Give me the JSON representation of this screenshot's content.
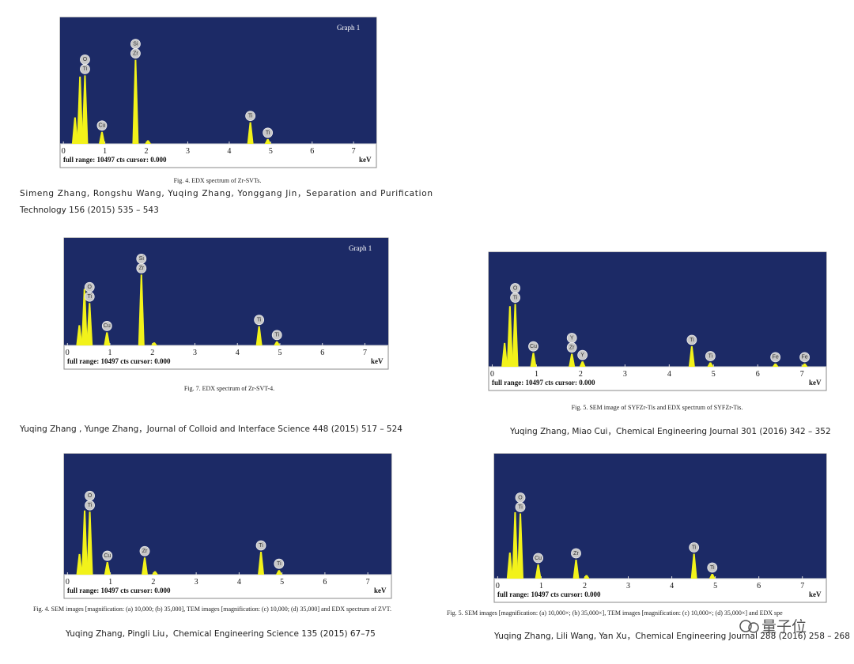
{
  "panels": [
    {
      "graph_label": "Graph 1",
      "xlim": [
        -0.08,
        7.55
      ],
      "ylim": [
        0,
        100
      ],
      "xticks": [
        0,
        1,
        2,
        3,
        4,
        5,
        6,
        7
      ],
      "footer": "full range: 10497 cts  cursor: 0.000",
      "unit": "keV",
      "peaks": [
        {
          "kev": 0.28,
          "height": 22,
          "labels": []
        },
        {
          "kev": 0.4,
          "height": 56,
          "labels": []
        },
        {
          "kev": 0.52,
          "height": 57,
          "labels": [
            "O",
            "Ti"
          ]
        },
        {
          "kev": 0.93,
          "height": 10,
          "labels": [
            "Cu"
          ]
        },
        {
          "kev": 1.74,
          "height": 70,
          "labels": [
            "Si",
            "Zr"
          ]
        },
        {
          "kev": 2.04,
          "height": 3,
          "labels": []
        },
        {
          "kev": 4.51,
          "height": 18,
          "labels": [
            "Ti"
          ]
        },
        {
          "kev": 4.93,
          "height": 4,
          "labels": [
            "Ti"
          ]
        }
      ],
      "caption": "Fig. 4. EDX spectrum of Zr-SVTs.",
      "citation": [
        "Simeng Zhang, Rongshu Wang, Yuqing Zhang, Yonggang Jin，Separation and Purification",
        "Technology 156 (2015) 535 – 543"
      ]
    },
    {
      "graph_label": "Graph 1",
      "xlim": [
        -0.08,
        7.55
      ],
      "ylim": [
        0,
        100
      ],
      "xticks": [
        0,
        1,
        2,
        3,
        4,
        5,
        6,
        7
      ],
      "footer": "full range: 10497 cts  cursor: 0.000",
      "unit": "keV",
      "peaks": [
        {
          "kev": 0.28,
          "height": 20,
          "labels": []
        },
        {
          "kev": 0.4,
          "height": 56,
          "labels": []
        },
        {
          "kev": 0.52,
          "height": 42,
          "labels": [
            "O",
            "Ti"
          ]
        },
        {
          "kev": 0.93,
          "height": 13,
          "labels": [
            "Cu"
          ]
        },
        {
          "kev": 1.74,
          "height": 70,
          "labels": [
            "Si",
            "Zr"
          ]
        },
        {
          "kev": 2.04,
          "height": 3,
          "labels": []
        },
        {
          "kev": 4.51,
          "height": 19,
          "labels": [
            "Ti"
          ]
        },
        {
          "kev": 4.93,
          "height": 4,
          "labels": [
            "Ti"
          ]
        }
      ],
      "caption": "Fig. 7. EDX spectrum of Zr-SVT-4.",
      "citation": [
        "Yuqing Zhang , Yunge Zhang，Journal of Colloid and Interface Science 448 (2015) 517 – 524"
      ]
    },
    {
      "xlim": [
        -0.08,
        7.55
      ],
      "ylim": [
        0,
        100
      ],
      "xticks": [
        0,
        1,
        2,
        3,
        4,
        5,
        6,
        7
      ],
      "footer": "full range: 10497 cts  cursor: 0.000",
      "unit": "keV",
      "peaks": [
        {
          "kev": 0.28,
          "height": 22,
          "labels": []
        },
        {
          "kev": 0.4,
          "height": 56,
          "labels": []
        },
        {
          "kev": 0.52,
          "height": 58,
          "labels": [
            "O",
            "Ti"
          ]
        },
        {
          "kev": 0.93,
          "height": 13,
          "labels": [
            "Cu"
          ]
        },
        {
          "kev": 1.8,
          "height": 12,
          "labels": [
            "Y",
            "Zr"
          ]
        },
        {
          "kev": 2.04,
          "height": 5,
          "labels": [
            "Y"
          ]
        },
        {
          "kev": 4.51,
          "height": 19,
          "labels": [
            "Ti"
          ]
        },
        {
          "kev": 4.93,
          "height": 4,
          "labels": [
            "Ti"
          ]
        },
        {
          "kev": 6.4,
          "height": 3,
          "labels": [
            "Fe"
          ]
        },
        {
          "kev": 7.06,
          "height": 3,
          "labels": [
            "Fe"
          ]
        }
      ],
      "caption": "Fig. 5. SEM image of SYFZr-Tis and EDX spectrum of SYFZr-Tis.",
      "citation": [
        "Yuqing Zhang, Miao Cui，Chemical Engineering Journal 301 (2016) 342 – 352"
      ]
    },
    {
      "xlim": [
        -0.08,
        7.55
      ],
      "ylim": [
        0,
        100
      ],
      "xticks": [
        0,
        1,
        2,
        3,
        4,
        5,
        6,
        7
      ],
      "footer": "full range: 10497 cts  cursor: 0.000",
      "unit": "keV",
      "peaks": [
        {
          "kev": 0.28,
          "height": 18,
          "labels": []
        },
        {
          "kev": 0.4,
          "height": 56,
          "labels": []
        },
        {
          "kev": 0.52,
          "height": 55,
          "labels": [
            "O",
            "Ti"
          ]
        },
        {
          "kev": 0.93,
          "height": 11,
          "labels": [
            "Cu"
          ]
        },
        {
          "kev": 1.8,
          "height": 15,
          "labels": [
            "Zr"
          ]
        },
        {
          "kev": 2.04,
          "height": 3,
          "labels": []
        },
        {
          "kev": 4.51,
          "height": 20,
          "labels": [
            "Ti"
          ]
        },
        {
          "kev": 4.93,
          "height": 4,
          "labels": [
            "Ti"
          ]
        }
      ],
      "caption": "Fig. 4. SEM images [magnification: (a) 10,000; (b) 35,000], TEM images [magnification: (c) 10,000; (d) 35,000] and EDX spectrum of ZVT.",
      "citation": [
        "Yuqing Zhang, Pingli Liu，Chemical Engineering Science 135 (2015) 67–75"
      ]
    },
    {
      "xlim": [
        -0.08,
        7.55
      ],
      "ylim": [
        0,
        100
      ],
      "xticks": [
        0,
        1,
        2,
        3,
        4,
        5,
        6,
        7
      ],
      "footer": "full range: 10497 cts  cursor: 0.000",
      "unit": "keV",
      "peaks": [
        {
          "kev": 0.28,
          "height": 22,
          "labels": []
        },
        {
          "kev": 0.4,
          "height": 56,
          "labels": []
        },
        {
          "kev": 0.52,
          "height": 55,
          "labels": [
            "O",
            "Ti"
          ]
        },
        {
          "kev": 0.93,
          "height": 12,
          "labels": [
            "Cu"
          ]
        },
        {
          "kev": 1.8,
          "height": 16,
          "labels": [
            "Zr"
          ]
        },
        {
          "kev": 2.04,
          "height": 3,
          "labels": []
        },
        {
          "kev": 4.51,
          "height": 21,
          "labels": [
            "Ti"
          ]
        },
        {
          "kev": 4.93,
          "height": 4,
          "labels": [
            "Ti"
          ]
        }
      ],
      "caption": "Fig. 5. SEM images [magnification: (a) 10,000×; (b) 35,000×], TEM images [magnification: (c) 10,000×; (d) 35,000×] and EDX spe",
      "citation": [
        "Yuqing Zhang, Lili Wang, Yan Xu，Chemical Engineering Journal 288 (2016) 258 – 268"
      ]
    }
  ],
  "watermark": "量子位"
}
